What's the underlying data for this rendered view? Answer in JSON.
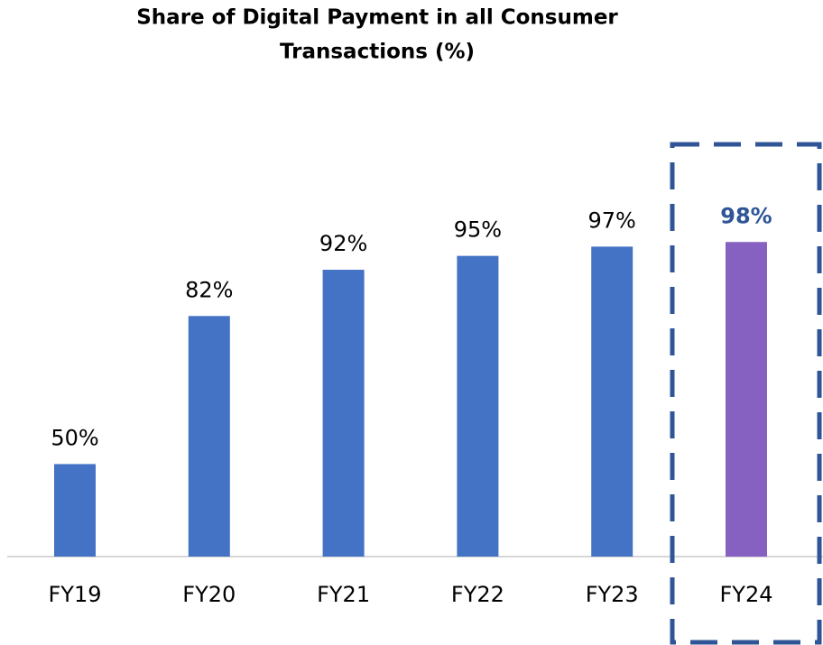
{
  "chart_data": {
    "type": "bar",
    "title": [
      "Share of Digital Payment in all Consumer",
      "Transactions (%)"
    ],
    "categories": [
      "FY19",
      "FY20",
      "FY21",
      "FY22",
      "FY23",
      "FY24"
    ],
    "values": [
      50,
      82,
      92,
      95,
      97,
      98
    ],
    "value_labels": [
      "50%",
      "82%",
      "92%",
      "95%",
      "97%",
      "98%"
    ],
    "colors": [
      "#4472c4",
      "#4472c4",
      "#4472c4",
      "#4472c4",
      "#4472c4",
      "#8661c1"
    ],
    "label_colors": [
      "#000000",
      "#000000",
      "#000000",
      "#000000",
      "#000000",
      "#2f5597"
    ],
    "ylim": [
      30,
      100
    ]
  }
}
